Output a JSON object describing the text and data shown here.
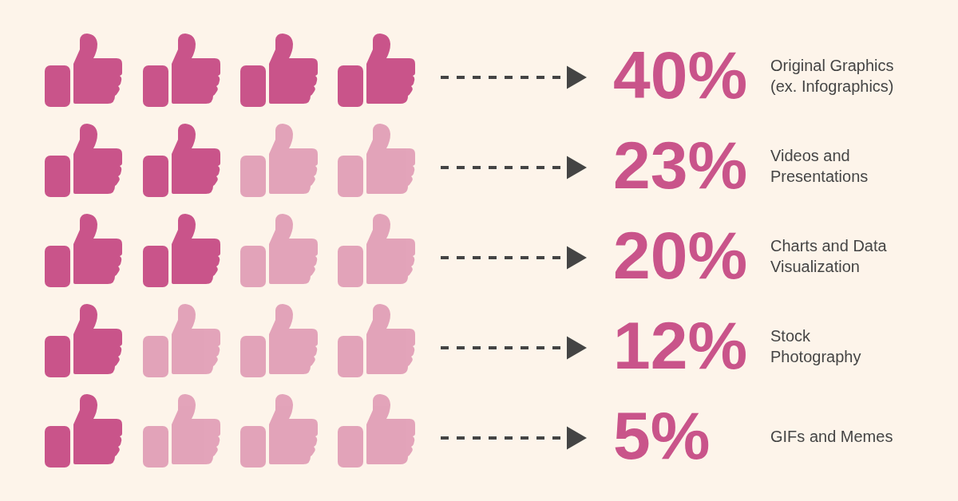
{
  "chart_data": {
    "type": "other",
    "categories": [
      "Original Graphics\n(ex. Infographics)",
      "Videos and\nPresentations",
      "Charts and Data\nVisualization",
      "Stock\nPhotography",
      "GIFs and Memes"
    ],
    "values": [
      40,
      23,
      20,
      12,
      5
    ],
    "value_labels": [
      "40%",
      "23%",
      "20%",
      "12%",
      "5%"
    ],
    "color": "#c9548a"
  }
}
